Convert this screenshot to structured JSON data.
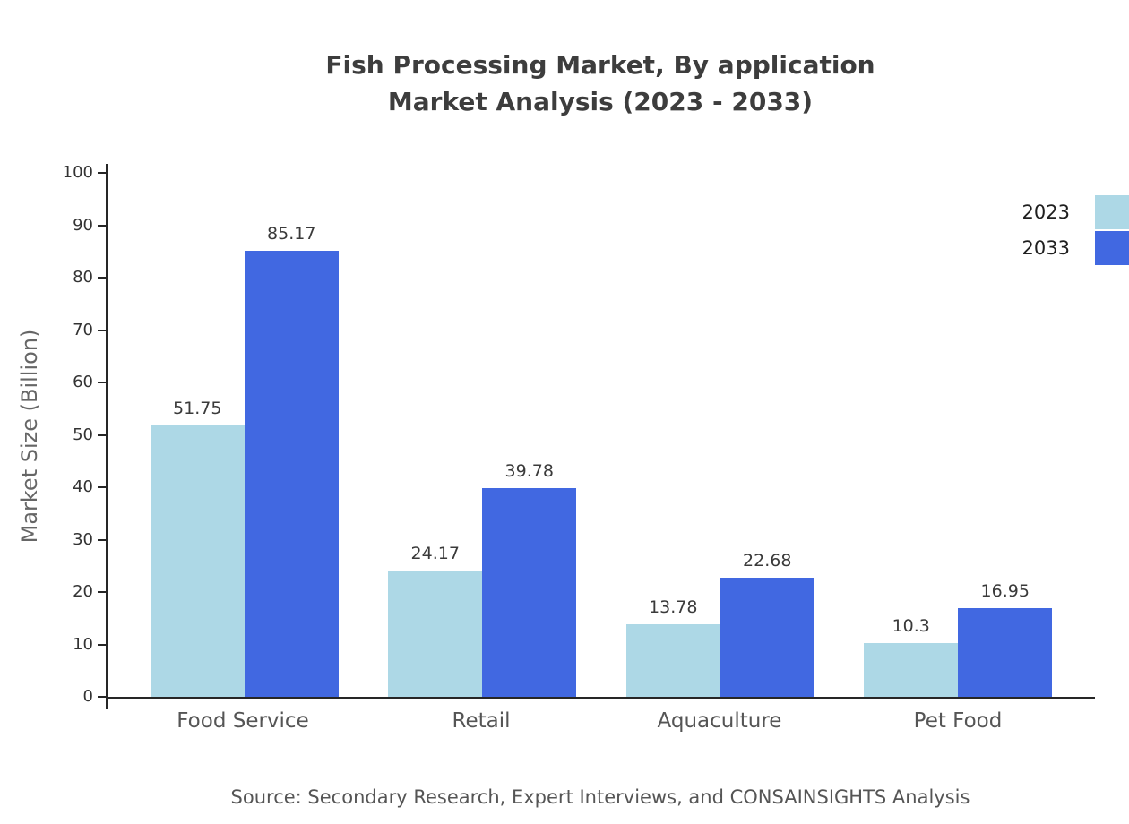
{
  "title": {
    "line1": "Fish Processing Market, By application",
    "line2": "Market Analysis (2023 - 2033)"
  },
  "chart_data": {
    "type": "bar",
    "categories": [
      "Food Service",
      "Retail",
      "Aquaculture",
      "Pet Food"
    ],
    "series": [
      {
        "name": "2023",
        "color": "#ADD8E6",
        "values": [
          51.75,
          24.17,
          13.78,
          10.3
        ]
      },
      {
        "name": "2033",
        "color": "#4168E1",
        "values": [
          85.17,
          39.78,
          22.68,
          16.95
        ]
      }
    ],
    "title": "Fish Processing Market, By application Market Analysis (2023 - 2033)",
    "xlabel": "",
    "ylabel": "Market Size (Billion)",
    "ylim": [
      0,
      100
    ],
    "ytick_step": 10,
    "grid": false,
    "legend_position": "top-right",
    "axis_color": "#262626"
  },
  "source": "Source: Secondary Research, Expert Interviews, and CONSAINSIGHTS Analysis"
}
